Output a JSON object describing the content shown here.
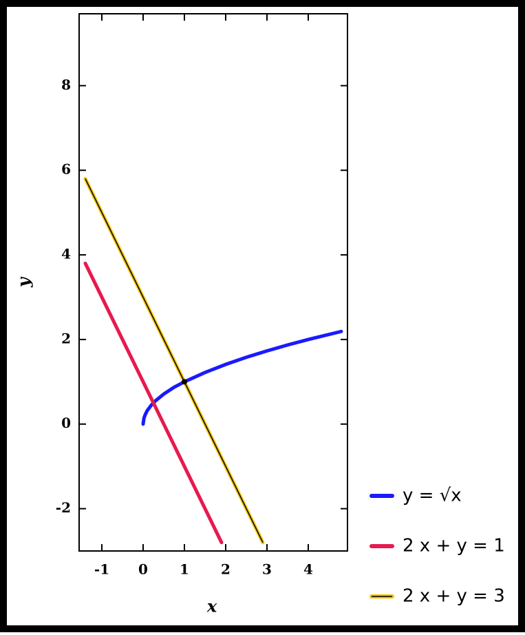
{
  "chart_data": {
    "type": "line",
    "xlabel": "x",
    "ylabel": "y",
    "xlim": [
      -1.55,
      4.95
    ],
    "ylim": [
      -3,
      9.7
    ],
    "xticks": [
      -1,
      0,
      1,
      2,
      3,
      4
    ],
    "yticks": [
      -2,
      0,
      2,
      4,
      6,
      8
    ],
    "series": [
      {
        "name": "y = √x",
        "color": "#1a1aff",
        "x": [
          0,
          0.02,
          0.05,
          0.1,
          0.2,
          0.3,
          0.5,
          0.75,
          1,
          1.5,
          2,
          2.5,
          3,
          3.5,
          4,
          4.8
        ],
        "values": [
          0,
          0.14,
          0.22,
          0.32,
          0.45,
          0.55,
          0.71,
          0.87,
          1,
          1.22,
          1.41,
          1.58,
          1.73,
          1.87,
          2,
          2.19
        ]
      },
      {
        "name": "2 x + y = 1",
        "color": "#e8194f",
        "x": [
          -1.4,
          1.9
        ],
        "values": [
          3.8,
          -2.8
        ]
      },
      {
        "name": "2 x + y = 3",
        "color": "#f5c400",
        "x": [
          -1.4,
          2.9
        ],
        "values": [
          5.8,
          -2.8
        ]
      }
    ],
    "points": {
      "color": "#000000",
      "x": [
        1
      ],
      "values": [
        1
      ]
    }
  }
}
